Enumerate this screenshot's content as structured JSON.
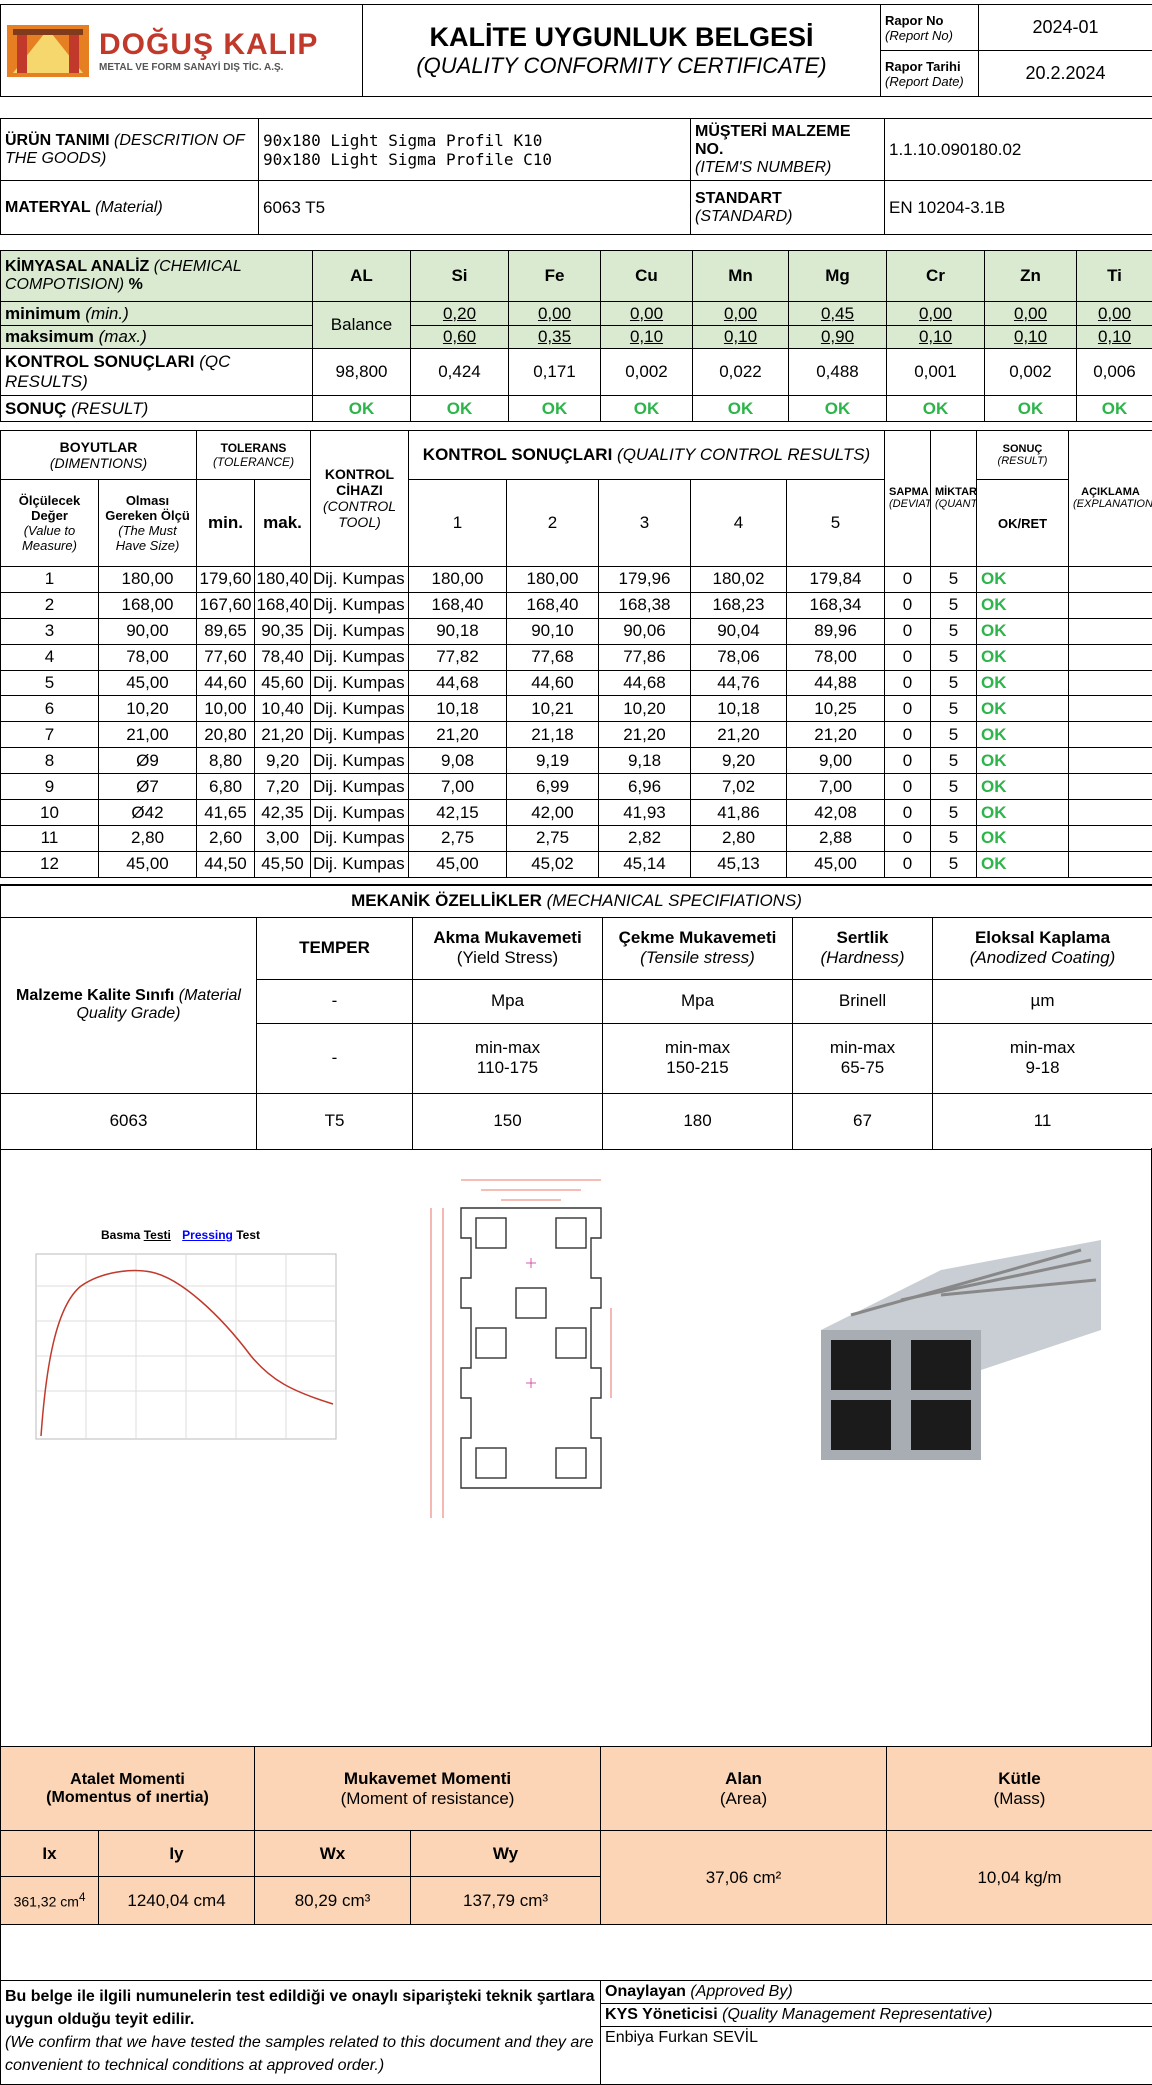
{
  "company": {
    "name": "DOĞUŞ KALIP",
    "tagline": "METAL VE FORM SANAYİ DIŞ TİC. A.Ş."
  },
  "header": {
    "title": "KALİTE UYGUNLUK BELGESİ",
    "subtitle": "(QUALITY CONFORMITY CERTIFICATE)",
    "report_no_label": "Rapor No",
    "report_no_label_en": "(Report No)",
    "report_no": "2024-01",
    "report_date_label": "Rapor Tarihi",
    "report_date_label_en": "(Report Date)",
    "report_date": "20.2.2024"
  },
  "info": {
    "goods_label": "ÜRÜN TANIMI",
    "goods_label_en": "(DESCRITION OF THE GOODS)",
    "goods_line1": "90x180 Light Sigma Profil  K10",
    "goods_line2": "90x180 Light Sigma Profile C10",
    "item_label": "MÜŞTERİ MALZEME NO.",
    "item_label_en": "(ITEM'S NUMBER)",
    "item_no": "1.1.10.090180.02",
    "material_label": "MATERYAL",
    "material_label_en": "(Material)",
    "material": "6063 T5",
    "standard_label": "STANDART",
    "standard_label_en": "(STANDARD)",
    "standard": "EN 10204-3.1B"
  },
  "chem": {
    "title": "KİMYASAL ANALİZ",
    "title_en": "(CHEMICAL COMPOTISION)",
    "percent": "%",
    "elements": [
      "AL",
      "Si",
      "Fe",
      "Cu",
      "Mn",
      "Mg",
      "Cr",
      "Zn",
      "Ti"
    ],
    "min_label": "minimum",
    "min_label_en": "(min.)",
    "max_label": "maksimum",
    "max_label_en": "(max.)",
    "balance": "Balance",
    "min": [
      "0,20",
      "0,00",
      "0,00",
      "0,00",
      "0,45",
      "0,00",
      "0,00",
      "0,00"
    ],
    "max": [
      "0,60",
      "0,35",
      "0,10",
      "0,10",
      "0,90",
      "0,10",
      "0,10",
      "0,10"
    ],
    "qc_label": "KONTROL SONUÇLARI",
    "qc_label_en": "(QC RESULTS)",
    "qc": [
      "98,800",
      "0,424",
      "0,171",
      "0,002",
      "0,022",
      "0,488",
      "0,001",
      "0,002",
      "0,006"
    ],
    "result_label": "SONUÇ",
    "result_label_en": "(RESULT)",
    "result": [
      "OK",
      "OK",
      "OK",
      "OK",
      "OK",
      "OK",
      "OK",
      "OK",
      "OK"
    ]
  },
  "dim": {
    "h_dim": "BOYUTLAR",
    "h_dim_en": "(DIMENTIONS)",
    "h_tol": "TOLERANS",
    "h_tol_en": "(TOLERANCE)",
    "h_tool": "KONTROL CİHAZI",
    "h_tool_en": "(CONTROL TOOL)",
    "h_qc": "KONTROL SONUÇLARI",
    "h_qc_en": "(QUALITY CONTROL RESULTS)",
    "h_dev": "SAPMA",
    "h_dev_en": "(DEVIATION)",
    "h_qty": "MİKTAR",
    "h_qty_en": "(QUANTITY)",
    "h_res": "SONUÇ",
    "h_res_en": "(RESULT)",
    "h_okret": "OK/RET",
    "h_exp": "AÇIKLAMA",
    "h_exp_en": "(EXPLANATION)",
    "h_meas": "Ölçülecek Değer",
    "h_meas_en": "(Value to Measure)",
    "h_must": "Olması Gereken Ölçü",
    "h_must_en": "(The Must Have Size)",
    "h_min": "min.",
    "h_max": "mak.",
    "cols": [
      "1",
      "2",
      "3",
      "4",
      "5"
    ],
    "rows": [
      {
        "no": "1",
        "size": "180,00",
        "min": "179,60",
        "max": "180,40",
        "tool": "Dij. Kumpas",
        "r": [
          "180,00",
          "180,00",
          "179,96",
          "180,02",
          "179,84"
        ],
        "dev": "0",
        "qty": "5",
        "res": "OK"
      },
      {
        "no": "2",
        "size": "168,00",
        "min": "167,60",
        "max": "168,40",
        "tool": "Dij. Kumpas",
        "r": [
          "168,40",
          "168,40",
          "168,38",
          "168,23",
          "168,34"
        ],
        "dev": "0",
        "qty": "5",
        "res": "OK"
      },
      {
        "no": "3",
        "size": "90,00",
        "min": "89,65",
        "max": "90,35",
        "tool": "Dij. Kumpas",
        "r": [
          "90,18",
          "90,10",
          "90,06",
          "90,04",
          "89,96"
        ],
        "dev": "0",
        "qty": "5",
        "res": "OK"
      },
      {
        "no": "4",
        "size": "78,00",
        "min": "77,60",
        "max": "78,40",
        "tool": "Dij. Kumpas",
        "r": [
          "77,82",
          "77,68",
          "77,86",
          "78,06",
          "78,00"
        ],
        "dev": "0",
        "qty": "5",
        "res": "OK"
      },
      {
        "no": "5",
        "size": "45,00",
        "min": "44,60",
        "max": "45,60",
        "tool": "Dij. Kumpas",
        "r": [
          "44,68",
          "44,60",
          "44,68",
          "44,76",
          "44,88"
        ],
        "dev": "0",
        "qty": "5",
        "res": "OK"
      },
      {
        "no": "6",
        "size": "10,20",
        "min": "10,00",
        "max": "10,40",
        "tool": "Dij. Kumpas",
        "r": [
          "10,18",
          "10,21",
          "10,20",
          "10,18",
          "10,25"
        ],
        "dev": "0",
        "qty": "5",
        "res": "OK"
      },
      {
        "no": "7",
        "size": "21,00",
        "min": "20,80",
        "max": "21,20",
        "tool": "Dij. Kumpas",
        "r": [
          "21,20",
          "21,18",
          "21,20",
          "21,20",
          "21,20"
        ],
        "dev": "0",
        "qty": "5",
        "res": "OK"
      },
      {
        "no": "8",
        "size": "Ø9",
        "min": "8,80",
        "max": "9,20",
        "tool": "Dij. Kumpas",
        "r": [
          "9,08",
          "9,19",
          "9,18",
          "9,20",
          "9,00"
        ],
        "dev": "0",
        "qty": "5",
        "res": "OK"
      },
      {
        "no": "9",
        "size": "Ø7",
        "min": "6,80",
        "max": "7,20",
        "tool": "Dij. Kumpas",
        "r": [
          "7,00",
          "6,99",
          "6,96",
          "7,02",
          "7,00"
        ],
        "dev": "0",
        "qty": "5",
        "res": "OK"
      },
      {
        "no": "10",
        "size": "Ø42",
        "min": "41,65",
        "max": "42,35",
        "tool": "Dij. Kumpas",
        "r": [
          "42,15",
          "42,00",
          "41,93",
          "41,86",
          "42,08"
        ],
        "dev": "0",
        "qty": "5",
        "res": "OK"
      },
      {
        "no": "11",
        "size": "2,80",
        "min": "2,60",
        "max": "3,00",
        "tool": "Dij. Kumpas",
        "r": [
          "2,75",
          "2,75",
          "2,82",
          "2,80",
          "2,88"
        ],
        "dev": "0",
        "qty": "5",
        "res": "OK"
      },
      {
        "no": "12",
        "size": "45,00",
        "min": "44,50",
        "max": "45,50",
        "tool": "Dij. Kumpas",
        "r": [
          "45,00",
          "45,02",
          "45,14",
          "45,13",
          "45,00"
        ],
        "dev": "0",
        "qty": "5",
        "res": "OK"
      }
    ]
  },
  "mech": {
    "title": "MEKANİK ÖZELLİKLER",
    "title_en": "(MECHANICAL SPECIFIATIONS)",
    "grade_label": "Malzeme Kalite Sınıfı",
    "grade_label_en": "(Material Quality Grade)",
    "temper": "TEMPER",
    "yield": "Akma Mukavemeti",
    "yield_en": "(Yield Stress)",
    "tensile": "Çekme Mukavemeti",
    "tensile_en": "(Tensile stress)",
    "hardness": "Sertlik",
    "hardness_en": "(Hardness)",
    "coating": "Eloksal Kaplama",
    "coating_en": "(Anodized Coating)",
    "units": [
      "-",
      "Mpa",
      "Mpa",
      "Brinell",
      "µm"
    ],
    "range_label": "min-max",
    "ranges": [
      "-",
      "110-175",
      "150-215",
      "65-75",
      "9-18"
    ],
    "values": {
      "grade": "6063",
      "temper": "T5",
      "yield": "150",
      "tensile": "180",
      "hardness": "67",
      "coating": "11"
    }
  },
  "graph": {
    "title_part1": "Basma",
    "title_part2": "Testi",
    "title_part3": "Pressing",
    "title_part4": "Test"
  },
  "props": {
    "inertia": "Atalet Momenti",
    "inertia_en": "(Momentus of ınertia)",
    "resistance": "Mukavemet Momenti",
    "resistance_en": "(Moment of resistance)",
    "area": "Alan",
    "area_en": "(Area)",
    "mass": "Kütle",
    "mass_en": "(Mass)",
    "ix_label": "Ix",
    "iy_label": "Iy",
    "wx_label": "Wx",
    "wy_label": "Wy",
    "ix": "361,32 cm",
    "ix_sup": "4",
    "iy": "1240,04 cm4",
    "wx": "80,29 cm³",
    "wy": "137,79 cm³",
    "area_val": "37,06 cm²",
    "mass_val": "10,04 kg/m"
  },
  "footer": {
    "confirm_tr": "Bu belge ile ilgili numunelerin test edildiği ve onaylı siparişteki teknik şartlara uygun olduğu teyit edilir.",
    "confirm_en": "(We confirm that we have tested the samples related to this document and they are convenient to technical conditions at approved order.)",
    "approved": "Onaylayan",
    "approved_en": "(Approved By)",
    "role": "KYS Yöneticisi",
    "role_en": "(Quality Management Representative)",
    "name": "Enbiya Furkan SEVİL"
  },
  "colors": {
    "ok_green": "#2db44a",
    "chem_bg": "#d9ead0",
    "props_bg": "#fbd5b5",
    "logo_red": "#c0392b",
    "logo_orange": "#e67e22"
  }
}
